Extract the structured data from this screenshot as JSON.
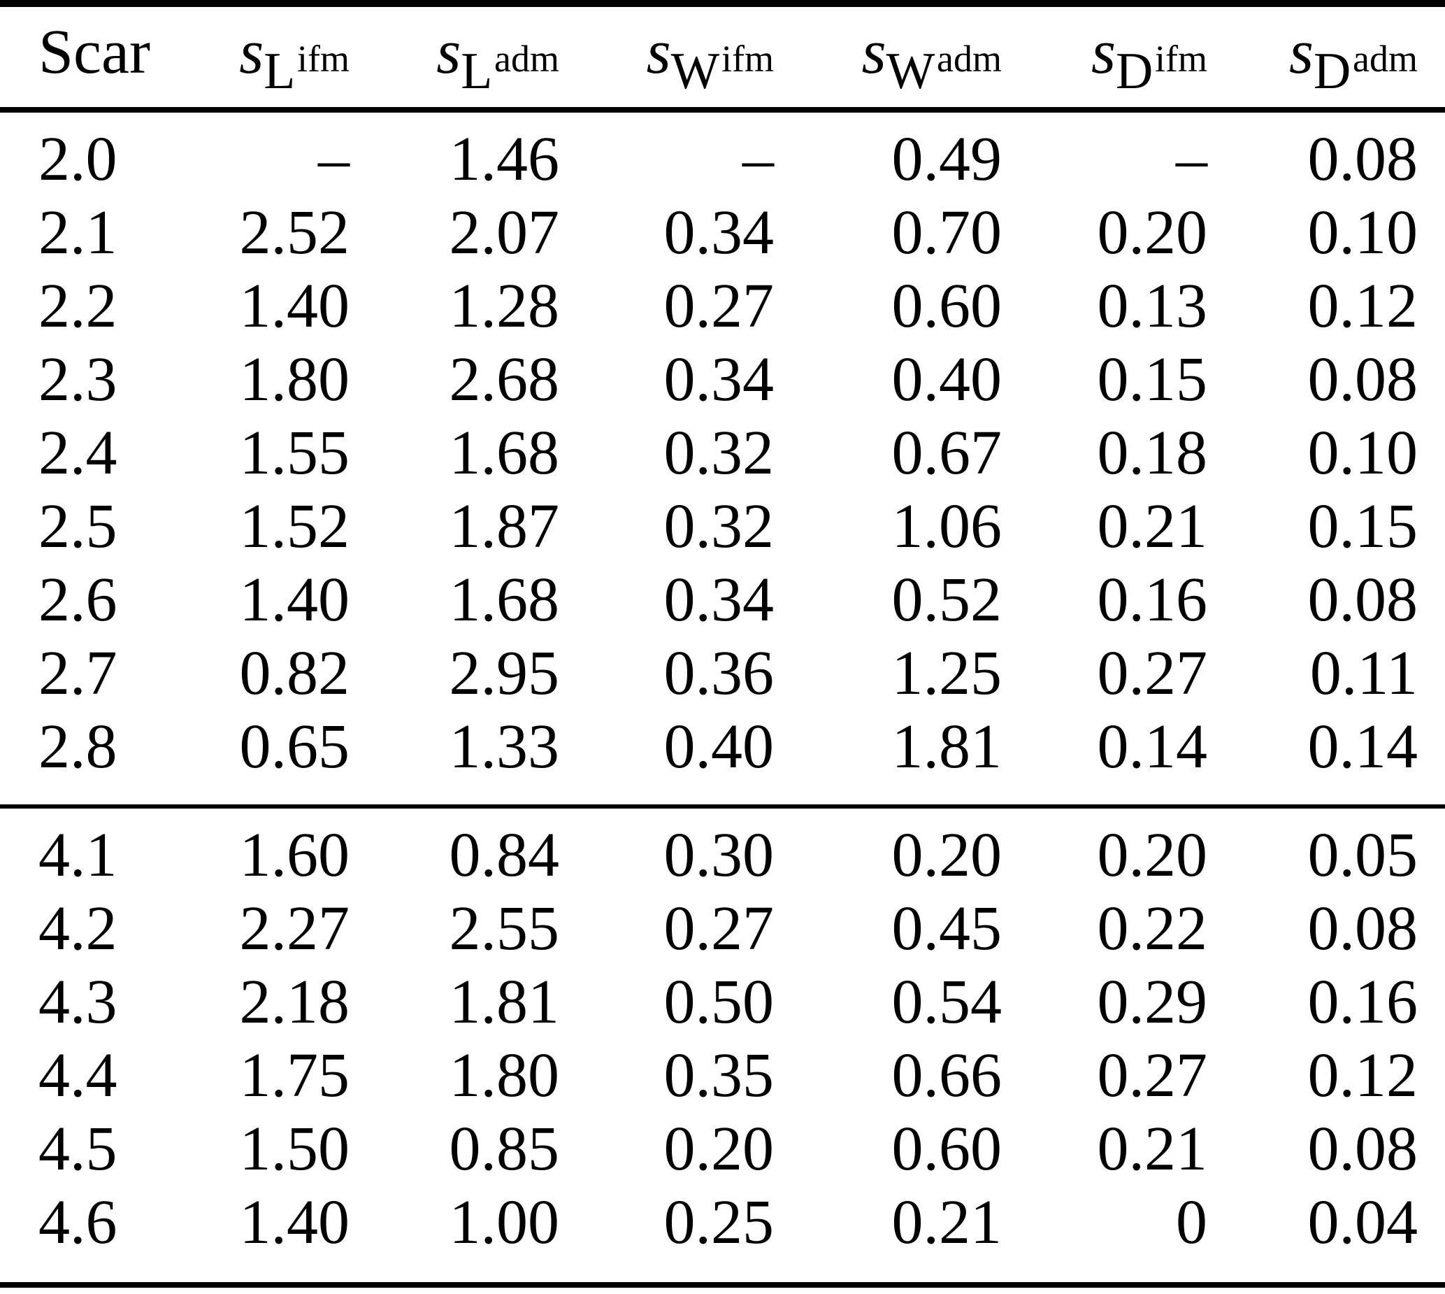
{
  "table": {
    "header": {
      "scar_label": "Scar",
      "columns": [
        {
          "base": "s",
          "sub": "L",
          "sup": "ifm"
        },
        {
          "base": "s",
          "sub": "L",
          "sup": "adm"
        },
        {
          "base": "s",
          "sub": "W",
          "sup": "ifm"
        },
        {
          "base": "s",
          "sub": "W",
          "sup": "adm"
        },
        {
          "base": "s",
          "sub": "D",
          "sup": "ifm"
        },
        {
          "base": "s",
          "sub": "D",
          "sup": "adm"
        }
      ]
    },
    "sections": [
      {
        "rows": [
          [
            "2.0",
            "–",
            "1.46",
            "–",
            "0.49",
            "–",
            "0.08"
          ],
          [
            "2.1",
            "2.52",
            "2.07",
            "0.34",
            "0.70",
            "0.20",
            "0.10"
          ],
          [
            "2.2",
            "1.40",
            "1.28",
            "0.27",
            "0.60",
            "0.13",
            "0.12"
          ],
          [
            "2.3",
            "1.80",
            "2.68",
            "0.34",
            "0.40",
            "0.15",
            "0.08"
          ],
          [
            "2.4",
            "1.55",
            "1.68",
            "0.32",
            "0.67",
            "0.18",
            "0.10"
          ],
          [
            "2.5",
            "1.52",
            "1.87",
            "0.32",
            "1.06",
            "0.21",
            "0.15"
          ],
          [
            "2.6",
            "1.40",
            "1.68",
            "0.34",
            "0.52",
            "0.16",
            "0.08"
          ],
          [
            "2.7",
            "0.82",
            "2.95",
            "0.36",
            "1.25",
            "0.27",
            "0.11"
          ],
          [
            "2.8",
            "0.65",
            "1.33",
            "0.40",
            "1.81",
            "0.14",
            "0.14"
          ]
        ]
      },
      {
        "rows": [
          [
            "4.1",
            "1.60",
            "0.84",
            "0.30",
            "0.20",
            "0.20",
            "0.05"
          ],
          [
            "4.2",
            "2.27",
            "2.55",
            "0.27",
            "0.45",
            "0.22",
            "0.08"
          ],
          [
            "4.3",
            "2.18",
            "1.81",
            "0.50",
            "0.54",
            "0.29",
            "0.16"
          ],
          [
            "4.4",
            "1.75",
            "1.80",
            "0.35",
            "0.66",
            "0.27",
            "0.12"
          ],
          [
            "4.5",
            "1.50",
            "0.85",
            "0.20",
            "0.60",
            "0.21",
            "0.08"
          ],
          [
            "4.6",
            "1.40",
            "1.00",
            "0.25",
            "0.21",
            "0",
            "0.04"
          ]
        ]
      }
    ],
    "colors": {
      "text": "#000000",
      "background": "#ffffff",
      "rule": "#000000"
    }
  }
}
